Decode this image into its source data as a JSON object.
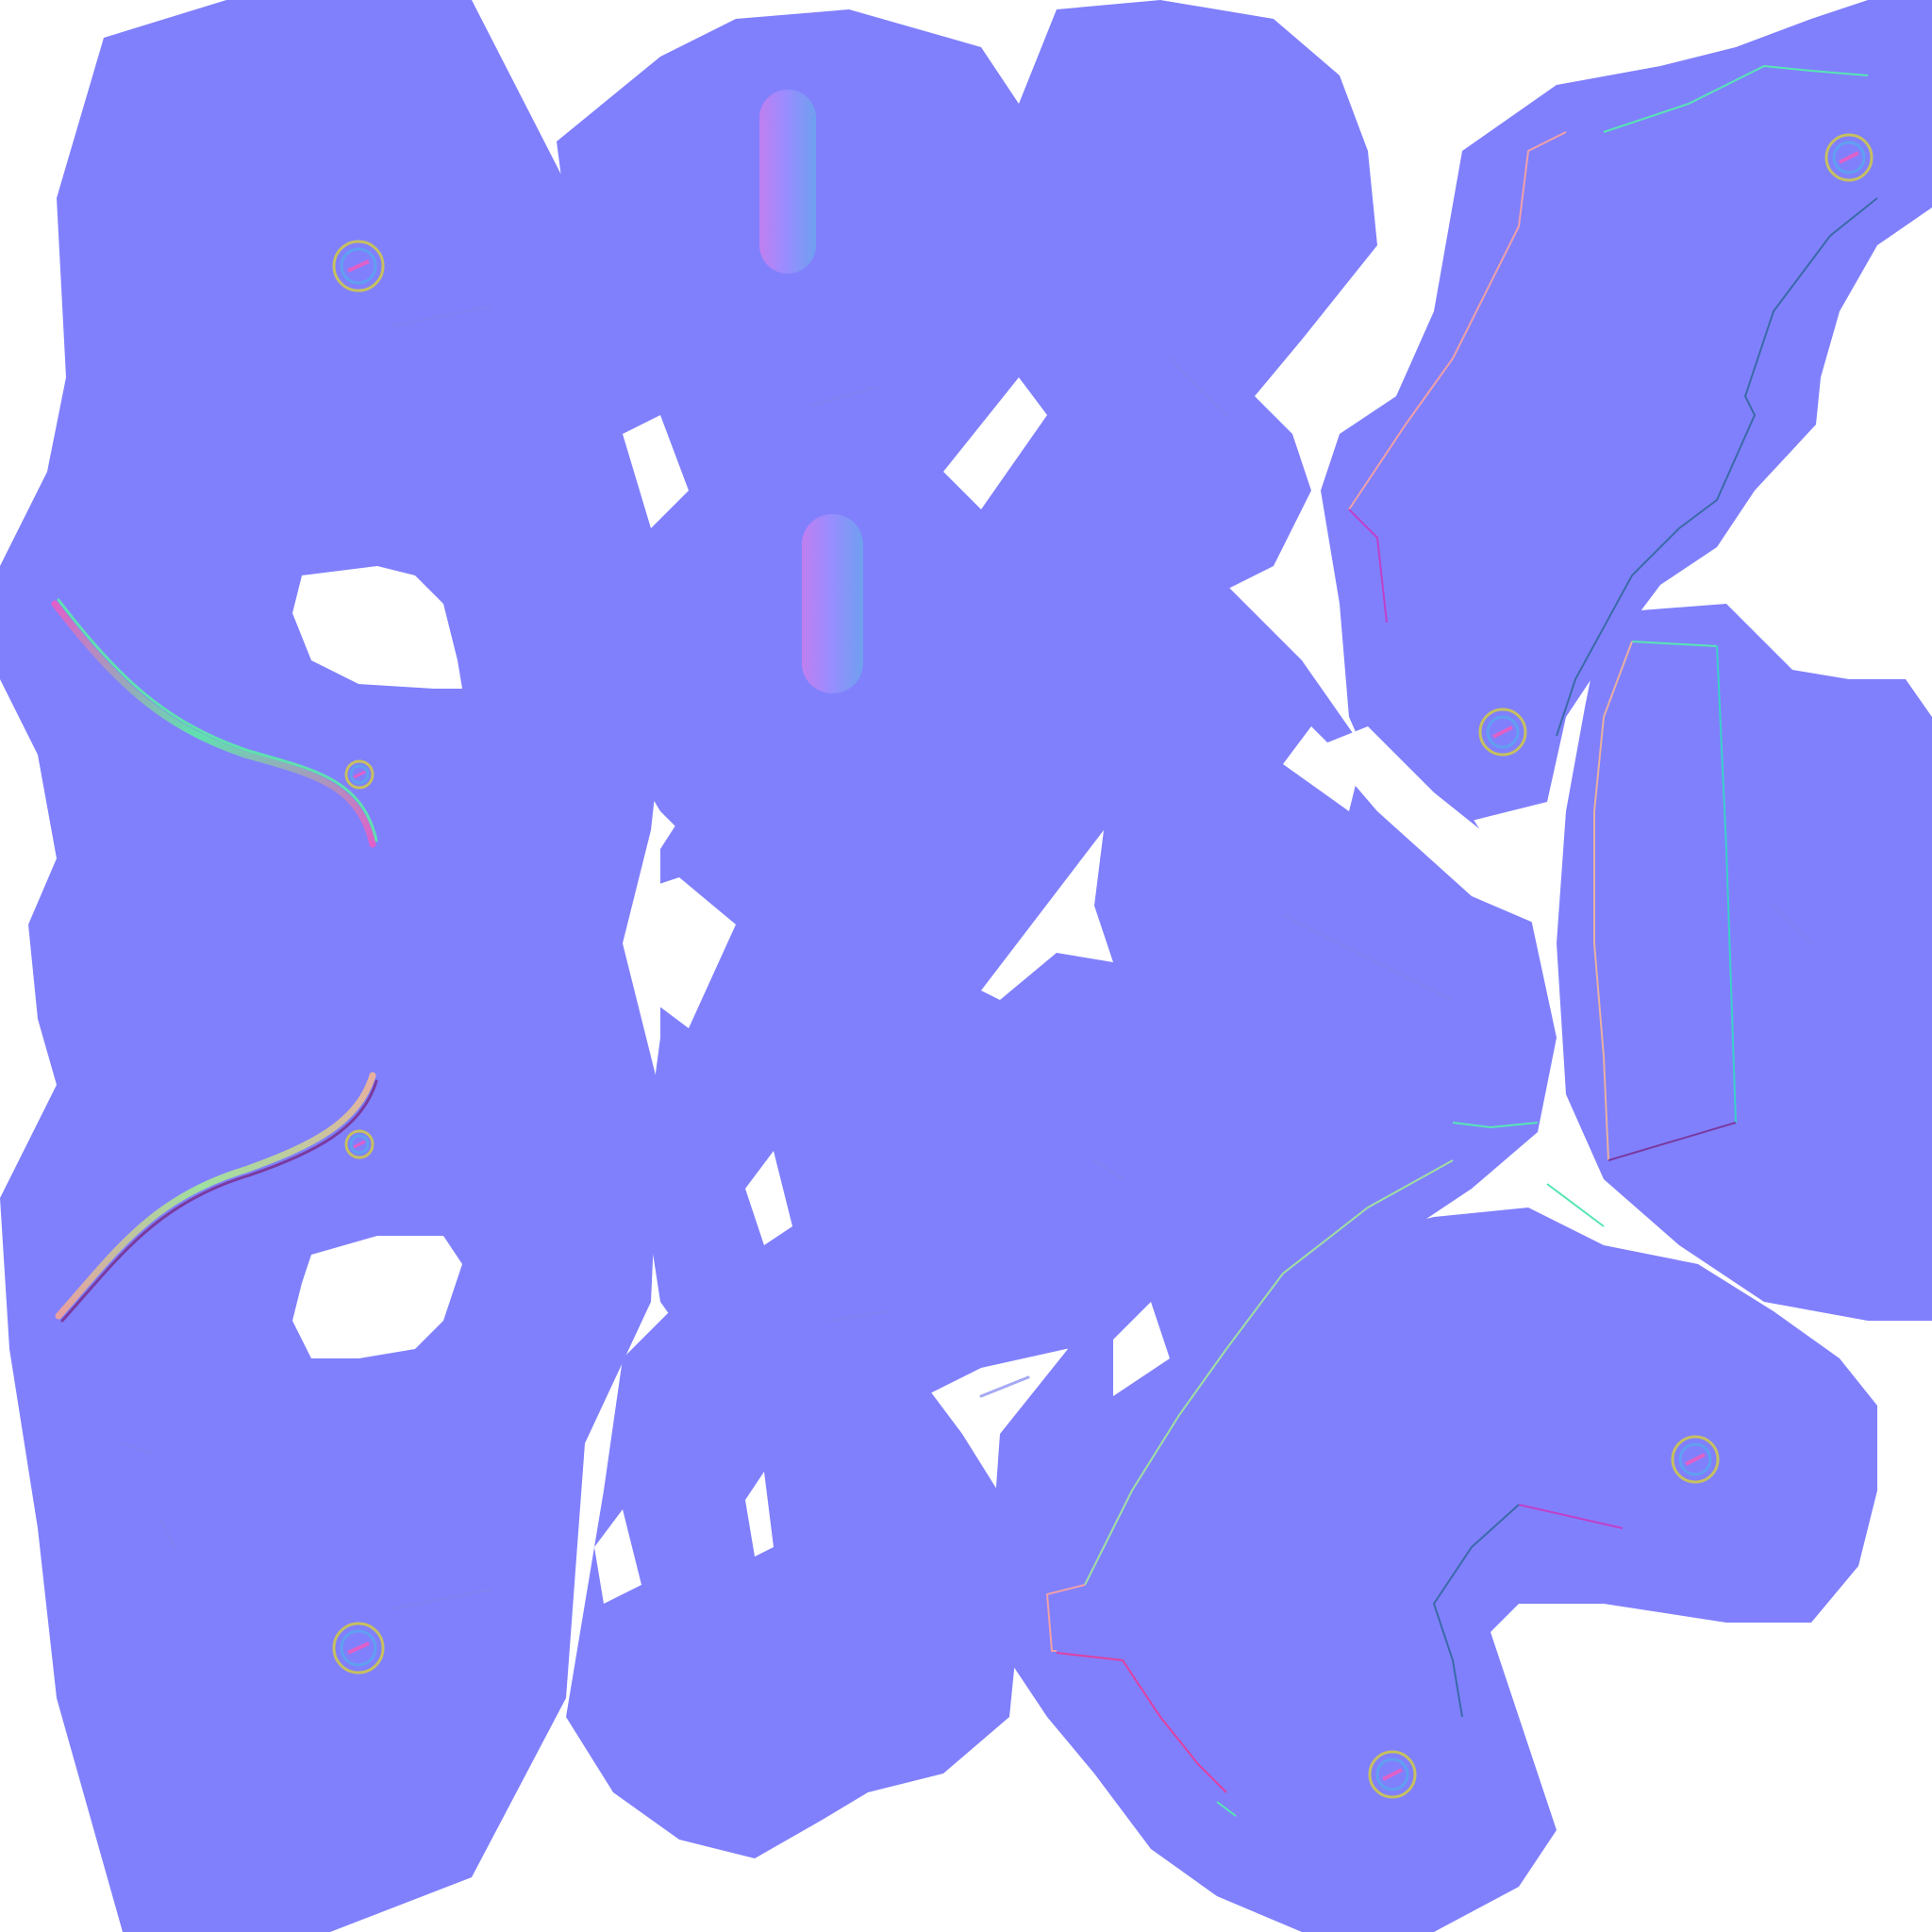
{
  "texture": {
    "kind": "normal-map",
    "background_color": "#ffffff",
    "base_color": "#8080fd",
    "seam_colors": [
      "#57e6b2",
      "#f0a0a8",
      "#c040c8",
      "#3a6aa8",
      "#e8b0a0"
    ],
    "icons": {
      "screw_head": "slotted-screw-icon",
      "pin_bump": "pin-bump-icon",
      "groove": "curved-groove-icon"
    }
  }
}
